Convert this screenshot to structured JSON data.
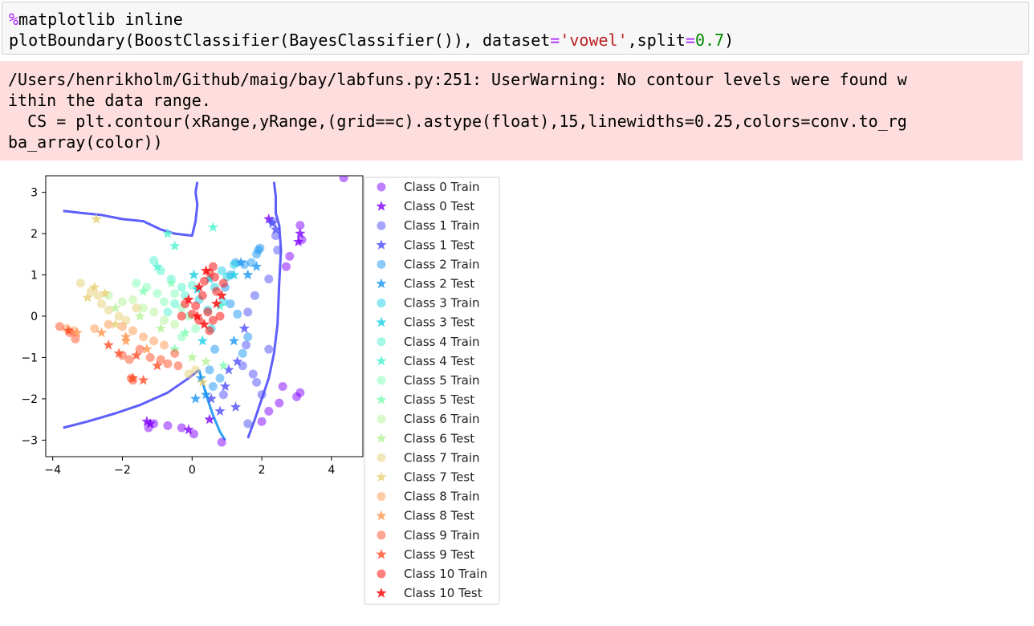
{
  "cell": {
    "line1_magic": "%",
    "line1_rest": "matplotlib inline",
    "line2_a": "plotBoundary(BoostClassifier(BayesClassifier()), dataset",
    "line2_eq1": "=",
    "line2_str": "'vowel'",
    "line2_b": ",split",
    "line2_eq2": "=",
    "line2_num": "0.7",
    "line2_c": ")"
  },
  "stderr": {
    "lines": [
      "/Users/henrikholm/Github/maig/bay/labfuns.py:251: UserWarning: No contour levels were found w",
      "ithin the data range.",
      "  CS = plt.contour(xRange,yRange,(grid==c).astype(float),15,linewidths=0.25,colors=conv.to_rg",
      "ba_array(color))"
    ]
  },
  "chart_data": {
    "type": "scatter",
    "xlim": [
      -4.2,
      4.9
    ],
    "ylim": [
      -3.4,
      3.4
    ],
    "xticks": [
      -4,
      -2,
      0,
      2,
      4
    ],
    "yticks": [
      3,
      2,
      1,
      0,
      -1,
      -2,
      -3
    ],
    "xtick_labels": [
      "−4",
      "−2",
      "0",
      "2",
      "4"
    ],
    "ytick_labels": [
      "3",
      "2",
      "1",
      "0",
      "−1",
      "−2",
      "−3"
    ],
    "grid": false,
    "legend_position": "right-outside",
    "legend": [
      {
        "label": "Class 0 Train",
        "marker": "circle",
        "color": "#8000ff"
      },
      {
        "label": "Class 0 Test",
        "marker": "star",
        "color": "#8000ff"
      },
      {
        "label": "Class 1 Train",
        "marker": "circle",
        "color": "#4d4dfc"
      },
      {
        "label": "Class 1 Test",
        "marker": "star",
        "color": "#4d4dfc"
      },
      {
        "label": "Class 2 Train",
        "marker": "circle",
        "color": "#1996f3"
      },
      {
        "label": "Class 2 Test",
        "marker": "star",
        "color": "#1996f3"
      },
      {
        "label": "Class 3 Train",
        "marker": "circle",
        "color": "#1acfe3"
      },
      {
        "label": "Class 3 Test",
        "marker": "star",
        "color": "#1acfe3"
      },
      {
        "label": "Class 4 Train",
        "marker": "circle",
        "color": "#4df3ce"
      },
      {
        "label": "Class 4 Test",
        "marker": "star",
        "color": "#4df3ce"
      },
      {
        "label": "Class 5 Train",
        "marker": "circle",
        "color": "#80ffb4"
      },
      {
        "label": "Class 5 Test",
        "marker": "star",
        "color": "#80ffb4"
      },
      {
        "label": "Class 6 Train",
        "marker": "circle",
        "color": "#b3f396"
      },
      {
        "label": "Class 6 Test",
        "marker": "star",
        "color": "#b3f396"
      },
      {
        "label": "Class 7 Train",
        "marker": "circle",
        "color": "#e6cf73"
      },
      {
        "label": "Class 7 Test",
        "marker": "star",
        "color": "#e6cf73"
      },
      {
        "label": "Class 8 Train",
        "marker": "circle",
        "color": "#ff964e"
      },
      {
        "label": "Class 8 Test",
        "marker": "star",
        "color": "#ff964e"
      },
      {
        "label": "Class 9 Train",
        "marker": "circle",
        "color": "#ff4d27"
      },
      {
        "label": "Class 9 Test",
        "marker": "star",
        "color": "#ff4d27"
      },
      {
        "label": "Class 10 Train",
        "marker": "circle",
        "color": "#ff0000"
      },
      {
        "label": "Class 10 Test",
        "marker": "star",
        "color": "#ff0000"
      }
    ],
    "boundaries": [
      {
        "color": "#4d4dfc",
        "points": [
          [
            -3.7,
            2.55
          ],
          [
            -3.2,
            2.5
          ],
          [
            -2.6,
            2.45
          ],
          [
            -2.0,
            2.35
          ],
          [
            -1.4,
            2.3
          ],
          [
            -0.9,
            2.1
          ],
          [
            -0.5,
            2.0
          ],
          [
            0.0,
            1.95
          ],
          [
            0.1,
            2.3
          ],
          [
            0.15,
            2.7
          ],
          [
            0.1,
            3.0
          ],
          [
            0.15,
            3.25
          ]
        ]
      },
      {
        "color": "#4d4dfc",
        "points": [
          [
            -3.7,
            -2.7
          ],
          [
            -3.0,
            -2.55
          ],
          [
            -2.2,
            -2.35
          ],
          [
            -1.5,
            -2.15
          ],
          [
            -0.7,
            -1.85
          ],
          [
            -0.1,
            -1.5
          ],
          [
            0.2,
            -1.3
          ]
        ]
      },
      {
        "color": "#4d4dfc",
        "points": [
          [
            2.35,
            3.25
          ],
          [
            2.4,
            2.9
          ],
          [
            2.4,
            2.5
          ],
          [
            2.5,
            2.2
          ],
          [
            2.55,
            1.6
          ],
          [
            2.5,
            0.8
          ],
          [
            2.45,
            -0.2
          ],
          [
            2.35,
            -0.9
          ],
          [
            2.2,
            -1.5
          ],
          [
            2.0,
            -2.0
          ],
          [
            1.8,
            -2.5
          ],
          [
            1.6,
            -2.95
          ]
        ]
      },
      {
        "color": "#1996f3",
        "points": [
          [
            0.2,
            -1.3
          ],
          [
            0.4,
            -1.9
          ],
          [
            0.6,
            -2.4
          ],
          [
            0.8,
            -2.8
          ],
          [
            0.95,
            -3.0
          ]
        ]
      }
    ],
    "series": [
      {
        "class": 0,
        "marker": "circle",
        "points": [
          [
            4.35,
            3.35
          ],
          [
            3.1,
            2.2
          ],
          [
            3.15,
            1.85
          ],
          [
            2.8,
            1.45
          ],
          [
            2.7,
            1.2
          ],
          [
            2.6,
            -1.7
          ],
          [
            2.5,
            -2.1
          ],
          [
            2.2,
            -2.3
          ],
          [
            2.0,
            -2.55
          ],
          [
            3.0,
            -1.95
          ],
          [
            3.1,
            -1.85
          ],
          [
            -1.25,
            -2.7
          ],
          [
            -1.1,
            -2.6
          ],
          [
            -0.7,
            -2.65
          ],
          [
            -0.3,
            -2.7
          ],
          [
            0.05,
            -2.85
          ],
          [
            0.85,
            -3.05
          ]
        ]
      },
      {
        "class": 0,
        "marker": "star",
        "points": [
          [
            3.05,
            1.8
          ],
          [
            3.1,
            2.0
          ],
          [
            2.2,
            2.35
          ],
          [
            -1.2,
            -2.6
          ],
          [
            -1.3,
            -2.55
          ],
          [
            -0.1,
            -2.75
          ],
          [
            0.5,
            -2.5
          ]
        ]
      },
      {
        "class": 1,
        "marker": "circle",
        "points": [
          [
            2.3,
            2.3
          ],
          [
            2.4,
            1.95
          ],
          [
            2.45,
            1.6
          ],
          [
            2.2,
            0.9
          ],
          [
            1.8,
            0.5
          ],
          [
            1.6,
            0.1
          ],
          [
            1.55,
            -0.7
          ],
          [
            1.45,
            -1.2
          ],
          [
            1.75,
            -1.4
          ],
          [
            1.85,
            -1.6
          ],
          [
            1.6,
            -2.6
          ],
          [
            2.0,
            -1.9
          ],
          [
            2.2,
            -0.8
          ],
          [
            0.9,
            -1.9
          ]
        ]
      },
      {
        "class": 1,
        "marker": "star",
        "points": [
          [
            2.3,
            2.25
          ],
          [
            2.4,
            2.1
          ],
          [
            1.5,
            -0.3
          ],
          [
            1.3,
            -1.1
          ],
          [
            1.05,
            -1.3
          ],
          [
            0.95,
            -1.7
          ],
          [
            1.25,
            -2.2
          ],
          [
            0.55,
            -2.0
          ],
          [
            0.8,
            -2.3
          ]
        ]
      },
      {
        "class": 2,
        "marker": "circle",
        "points": [
          [
            1.9,
            1.6
          ],
          [
            1.95,
            1.65
          ],
          [
            1.85,
            1.5
          ],
          [
            1.7,
            1.3
          ],
          [
            1.5,
            1.25
          ],
          [
            1.25,
            1.3
          ],
          [
            1.1,
            1.0
          ],
          [
            0.95,
            0.7
          ],
          [
            1.1,
            0.3
          ],
          [
            1.3,
            0.05
          ],
          [
            1.6,
            -0.5
          ],
          [
            1.45,
            -0.9
          ],
          [
            0.6,
            -1.7
          ],
          [
            0.8,
            -1.5
          ],
          [
            0.5,
            -1.3
          ],
          [
            0.65,
            -0.8
          ]
        ]
      },
      {
        "class": 2,
        "marker": "star",
        "points": [
          [
            1.4,
            1.3
          ],
          [
            1.85,
            1.2
          ],
          [
            1.6,
            1.0
          ],
          [
            0.1,
            -2.0
          ],
          [
            0.4,
            -1.9
          ],
          [
            1.2,
            -0.6
          ],
          [
            0.25,
            -1.5
          ]
        ]
      },
      {
        "class": 3,
        "marker": "circle",
        "points": [
          [
            1.2,
            1.25
          ],
          [
            1.0,
            0.95
          ],
          [
            0.85,
            1.1
          ],
          [
            0.65,
            0.7
          ],
          [
            0.9,
            0.35
          ],
          [
            0.45,
            0.15
          ],
          [
            0.2,
            0.4
          ],
          [
            0.55,
            -0.3
          ]
        ]
      },
      {
        "class": 3,
        "marker": "star",
        "points": [
          [
            1.2,
            1.0
          ],
          [
            0.5,
            0.9
          ],
          [
            0.15,
            0.65
          ],
          [
            0.05,
            1.0
          ],
          [
            0.3,
            -0.6
          ]
        ]
      },
      {
        "class": 4,
        "marker": "circle",
        "points": [
          [
            -1.1,
            1.35
          ],
          [
            -0.9,
            1.1
          ],
          [
            -0.6,
            0.9
          ],
          [
            -0.3,
            0.7
          ],
          [
            0.0,
            0.75
          ],
          [
            -0.2,
            0.5
          ],
          [
            -0.5,
            0.3
          ],
          [
            -0.7,
            0.1
          ]
        ]
      },
      {
        "class": 4,
        "marker": "star",
        "points": [
          [
            -1.0,
            1.2
          ],
          [
            0.6,
            2.15
          ],
          [
            -0.7,
            2.0
          ],
          [
            -0.5,
            1.7
          ],
          [
            0.8,
            0.25
          ]
        ]
      },
      {
        "class": 5,
        "marker": "circle",
        "points": [
          [
            -1.6,
            0.8
          ],
          [
            -1.3,
            0.7
          ],
          [
            -1.0,
            0.55
          ],
          [
            -0.8,
            0.35
          ],
          [
            -0.5,
            0.55
          ],
          [
            -0.3,
            0.2
          ],
          [
            -0.1,
            0.0
          ],
          [
            0.1,
            -0.3
          ],
          [
            -0.3,
            -0.5
          ]
        ]
      },
      {
        "class": 5,
        "marker": "star",
        "points": [
          [
            -1.4,
            0.6
          ],
          [
            -0.6,
            0.8
          ],
          [
            -0.2,
            -0.4
          ],
          [
            -0.5,
            -0.8
          ],
          [
            0.9,
            -1.2
          ]
        ]
      },
      {
        "class": 6,
        "marker": "circle",
        "points": [
          [
            -2.4,
            0.5
          ],
          [
            -2.0,
            0.35
          ],
          [
            -1.7,
            0.4
          ],
          [
            -1.4,
            0.2
          ],
          [
            -1.1,
            0.1
          ],
          [
            -0.8,
            -0.1
          ],
          [
            -0.5,
            -0.2
          ]
        ]
      },
      {
        "class": 6,
        "marker": "star",
        "points": [
          [
            -2.2,
            0.2
          ],
          [
            -1.5,
            0.0
          ],
          [
            -0.9,
            -0.3
          ],
          [
            0.0,
            -1.0
          ],
          [
            0.4,
            -1.1
          ]
        ]
      },
      {
        "class": 7,
        "marker": "circle",
        "points": [
          [
            -3.2,
            0.8
          ],
          [
            -2.9,
            0.6
          ],
          [
            -2.7,
            0.5
          ],
          [
            -2.6,
            0.3
          ],
          [
            -2.4,
            0.15
          ],
          [
            -2.1,
            0.0
          ],
          [
            -1.9,
            -0.1
          ],
          [
            -1.6,
            0.2
          ],
          [
            0.1,
            -1.3
          ],
          [
            -0.1,
            -1.4
          ]
        ]
      },
      {
        "class": 7,
        "marker": "star",
        "points": [
          [
            -3.0,
            0.45
          ],
          [
            -2.8,
            0.7
          ],
          [
            -2.5,
            0.55
          ],
          [
            -2.2,
            -0.2
          ],
          [
            -2.75,
            2.35
          ],
          [
            0.3,
            -1.6
          ]
        ]
      },
      {
        "class": 8,
        "marker": "circle",
        "points": [
          [
            -3.6,
            -0.3
          ],
          [
            -3.4,
            -0.35
          ],
          [
            -2.8,
            -0.3
          ],
          [
            -2.4,
            -0.2
          ],
          [
            -2.0,
            -0.25
          ],
          [
            -1.7,
            -0.35
          ],
          [
            -1.4,
            -0.5
          ],
          [
            -1.1,
            -0.6
          ],
          [
            -0.8,
            -0.7
          ]
        ]
      },
      {
        "class": 8,
        "marker": "star",
        "points": [
          [
            -3.3,
            -0.4
          ],
          [
            -2.6,
            -0.4
          ],
          [
            -1.9,
            -0.5
          ],
          [
            -1.3,
            -0.8
          ],
          [
            -1.9,
            -0.6
          ]
        ]
      },
      {
        "class": 9,
        "marker": "circle",
        "points": [
          [
            -3.8,
            -0.25
          ],
          [
            -3.5,
            -0.4
          ],
          [
            -3.35,
            -0.55
          ],
          [
            -2.0,
            -0.95
          ],
          [
            -1.8,
            -1.05
          ],
          [
            -1.5,
            -0.8
          ],
          [
            -1.2,
            -1.0
          ],
          [
            -0.9,
            -1.05
          ],
          [
            -0.5,
            -0.9
          ],
          [
            -0.7,
            -1.15
          ],
          [
            -0.4,
            -1.2
          ],
          [
            -1.75,
            -1.5
          ],
          [
            -1.7,
            -1.55
          ]
        ]
      },
      {
        "class": 9,
        "marker": "star",
        "points": [
          [
            -3.55,
            -0.35
          ],
          [
            -2.1,
            -0.9
          ],
          [
            -1.6,
            -0.95
          ],
          [
            -1.4,
            -1.55
          ],
          [
            -1.7,
            -1.5
          ],
          [
            -1.0,
            -1.2
          ],
          [
            -2.4,
            -0.7
          ]
        ]
      },
      {
        "class": 10,
        "marker": "circle",
        "points": [
          [
            0.6,
            1.2
          ],
          [
            0.5,
            1.05
          ],
          [
            0.35,
            0.85
          ],
          [
            0.65,
            0.95
          ],
          [
            0.3,
            0.5
          ],
          [
            0.1,
            0.25
          ],
          [
            0.0,
            0.05
          ],
          [
            0.2,
            -0.1
          ],
          [
            0.45,
            0.1
          ],
          [
            0.6,
            -0.1
          ],
          [
            0.8,
            0.0
          ],
          [
            0.7,
            0.6
          ],
          [
            0.9,
            0.8
          ],
          [
            -0.2,
            0.3
          ],
          [
            -0.3,
            0.0
          ],
          [
            0.5,
            -0.35
          ]
        ]
      },
      {
        "class": 10,
        "marker": "star",
        "points": [
          [
            0.4,
            1.1
          ],
          [
            0.2,
            0.7
          ],
          [
            -0.1,
            0.4
          ],
          [
            0.15,
            0.0
          ],
          [
            0.35,
            -0.2
          ],
          [
            0.7,
            0.3
          ],
          [
            0.85,
            0.5
          ]
        ]
      }
    ]
  }
}
